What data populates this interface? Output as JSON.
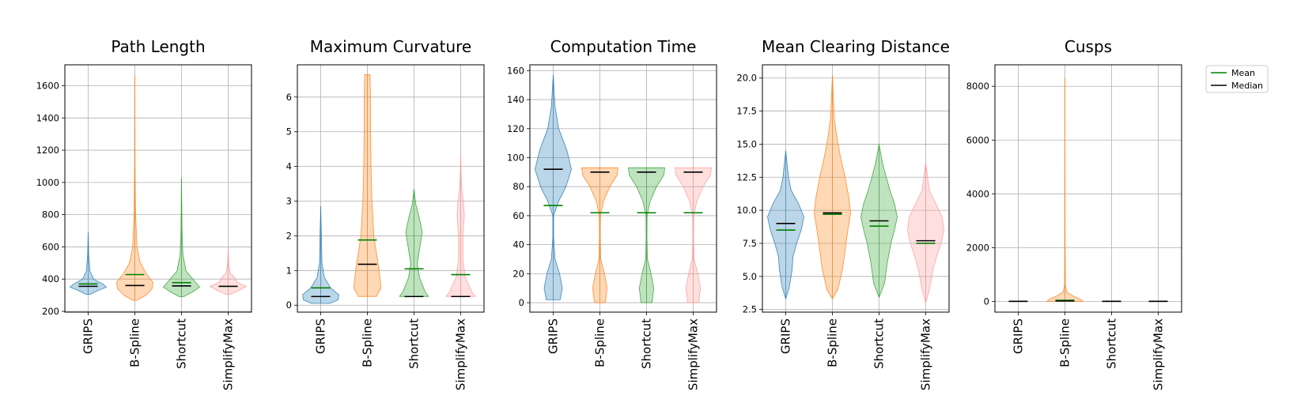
{
  "colors": {
    "series": [
      "#1f77b4",
      "#ff7f0e",
      "#2ca02c",
      "#ff9896"
    ],
    "mean": "#008000",
    "median": "#000000",
    "grid": "#b0b0b0",
    "frame": "#000000"
  },
  "legend": {
    "placement": "right of last panel, top",
    "entries": [
      {
        "label": "Mean",
        "color": "#008000"
      },
      {
        "label": "Median",
        "color": "#000000"
      }
    ]
  },
  "chart_data": [
    {
      "type": "violin",
      "title": "Path Length",
      "categories": [
        "GRIPS",
        "B-Spline",
        "Shortcut",
        "SimplifyMax"
      ],
      "ylim": [
        195,
        1730
      ],
      "yticks": [
        200,
        400,
        600,
        800,
        1000,
        1200,
        1400,
        1600
      ],
      "grid": true,
      "series": [
        {
          "name": "GRIPS",
          "min": 305,
          "max": 690,
          "mean": 370,
          "median": 355,
          "profile": [
            [
              305,
              0.1
            ],
            [
              330,
              0.55
            ],
            [
              350,
              1.0
            ],
            [
              370,
              0.8
            ],
            [
              400,
              0.3
            ],
            [
              450,
              0.1
            ],
            [
              550,
              0.03
            ],
            [
              690,
              0.0
            ]
          ]
        },
        {
          "name": "B-Spline",
          "min": 268,
          "max": 1665,
          "mean": 428,
          "median": 360,
          "profile": [
            [
              268,
              0.1
            ],
            [
              300,
              0.6
            ],
            [
              340,
              0.95
            ],
            [
              380,
              1.0
            ],
            [
              430,
              0.65
            ],
            [
              500,
              0.3
            ],
            [
              600,
              0.12
            ],
            [
              800,
              0.04
            ],
            [
              1100,
              0.015
            ],
            [
              1665,
              0.0
            ]
          ]
        },
        {
          "name": "Shortcut",
          "min": 290,
          "max": 1025,
          "mean": 378,
          "median": 358,
          "profile": [
            [
              290,
              0.1
            ],
            [
              320,
              0.6
            ],
            [
              350,
              1.0
            ],
            [
              390,
              0.7
            ],
            [
              450,
              0.25
            ],
            [
              550,
              0.08
            ],
            [
              700,
              0.03
            ],
            [
              1025,
              0.0
            ]
          ]
        },
        {
          "name": "SimplifyMax",
          "min": 305,
          "max": 600,
          "mean": 355,
          "median": 355,
          "profile": [
            [
              305,
              0.1
            ],
            [
              330,
              0.6
            ],
            [
              355,
              1.0
            ],
            [
              380,
              0.5
            ],
            [
              410,
              0.35
            ],
            [
              440,
              0.1
            ],
            [
              500,
              0.03
            ],
            [
              600,
              0.0
            ]
          ]
        }
      ]
    },
    {
      "type": "violin",
      "title": "Maximum Curvature",
      "categories": [
        "GRIPS",
        "B-Spline",
        "Shortcut",
        "SimplifyMax"
      ],
      "ylim": [
        -0.2,
        6.93
      ],
      "yticks": [
        0,
        1,
        2,
        3,
        4,
        5,
        6
      ],
      "grid": true,
      "series": [
        {
          "name": "GRIPS",
          "min": 0.05,
          "max": 2.85,
          "mean": 0.5,
          "median": 0.25,
          "profile": [
            [
              0.05,
              0.5
            ],
            [
              0.15,
              0.95
            ],
            [
              0.3,
              1.0
            ],
            [
              0.5,
              0.55
            ],
            [
              0.8,
              0.2
            ],
            [
              1.2,
              0.07
            ],
            [
              2.0,
              0.04
            ],
            [
              2.85,
              0.0
            ]
          ]
        },
        {
          "name": "B-Spline",
          "min": 0.25,
          "max": 6.65,
          "mean": 1.88,
          "median": 1.18,
          "profile": [
            [
              0.25,
              0.5
            ],
            [
              0.5,
              0.75
            ],
            [
              1.0,
              0.65
            ],
            [
              1.5,
              0.5
            ],
            [
              2.0,
              0.35
            ],
            [
              3.0,
              0.25
            ],
            [
              4.0,
              0.2
            ],
            [
              5.0,
              0.18
            ],
            [
              6.0,
              0.17
            ],
            [
              6.65,
              0.15
            ]
          ]
        },
        {
          "name": "Shortcut",
          "min": 0.25,
          "max": 3.35,
          "mean": 1.05,
          "median": 0.25,
          "profile": [
            [
              0.25,
              0.8
            ],
            [
              0.4,
              0.6
            ],
            [
              0.8,
              0.3
            ],
            [
              1.2,
              0.18
            ],
            [
              1.6,
              0.3
            ],
            [
              2.1,
              0.45
            ],
            [
              2.5,
              0.3
            ],
            [
              2.9,
              0.1
            ],
            [
              3.35,
              0.0
            ]
          ]
        },
        {
          "name": "SimplifyMax",
          "min": 0.25,
          "max": 4.3,
          "mean": 0.88,
          "median": 0.25,
          "profile": [
            [
              0.25,
              0.8
            ],
            [
              0.4,
              0.6
            ],
            [
              0.8,
              0.25
            ],
            [
              1.3,
              0.12
            ],
            [
              2.0,
              0.12
            ],
            [
              2.6,
              0.2
            ],
            [
              3.0,
              0.15
            ],
            [
              3.4,
              0.05
            ],
            [
              4.3,
              0.0
            ]
          ]
        }
      ]
    },
    {
      "type": "violin",
      "title": "Computation Time",
      "categories": [
        "GRIPS",
        "B-Spline",
        "Shortcut",
        "SimplifyMax"
      ],
      "ylim": [
        -6.5,
        164
      ],
      "yticks": [
        0,
        20,
        40,
        60,
        80,
        100,
        120,
        140,
        160
      ],
      "grid": true,
      "series": [
        {
          "name": "GRIPS",
          "min": 2,
          "max": 157,
          "mean": 67,
          "median": 92,
          "profile": [
            [
              2,
              0.38
            ],
            [
              10,
              0.5
            ],
            [
              20,
              0.35
            ],
            [
              30,
              0.1
            ],
            [
              45,
              0.02
            ],
            [
              60,
              0.02
            ],
            [
              70,
              0.3
            ],
            [
              80,
              0.7
            ],
            [
              92,
              1.0
            ],
            [
              105,
              0.75
            ],
            [
              120,
              0.3
            ],
            [
              135,
              0.1
            ],
            [
              157,
              0.0
            ]
          ]
        },
        {
          "name": "B-Spline",
          "min": 0,
          "max": 93,
          "mean": 62,
          "median": 90,
          "profile": [
            [
              0,
              0.3
            ],
            [
              10,
              0.4
            ],
            [
              20,
              0.25
            ],
            [
              30,
              0.05
            ],
            [
              45,
              0.02
            ],
            [
              60,
              0.03
            ],
            [
              70,
              0.2
            ],
            [
              80,
              0.55
            ],
            [
              88,
              0.95
            ],
            [
              93,
              1.0
            ]
          ]
        },
        {
          "name": "Shortcut",
          "min": 0,
          "max": 93,
          "mean": 62,
          "median": 90,
          "profile": [
            [
              0,
              0.3
            ],
            [
              10,
              0.4
            ],
            [
              20,
              0.25
            ],
            [
              30,
              0.05
            ],
            [
              45,
              0.02
            ],
            [
              60,
              0.03
            ],
            [
              70,
              0.2
            ],
            [
              80,
              0.55
            ],
            [
              88,
              0.95
            ],
            [
              93,
              1.0
            ]
          ]
        },
        {
          "name": "SimplifyMax",
          "min": 0,
          "max": 93,
          "mean": 62,
          "median": 90,
          "profile": [
            [
              0,
              0.3
            ],
            [
              10,
              0.4
            ],
            [
              20,
              0.25
            ],
            [
              30,
              0.05
            ],
            [
              45,
              0.02
            ],
            [
              60,
              0.03
            ],
            [
              70,
              0.2
            ],
            [
              80,
              0.55
            ],
            [
              88,
              0.95
            ],
            [
              93,
              1.0
            ]
          ]
        }
      ]
    },
    {
      "type": "violin",
      "title": "Mean Clearing Distance",
      "categories": [
        "GRIPS",
        "B-Spline",
        "Shortcut",
        "SimplifyMax"
      ],
      "ylim": [
        2.3,
        21.0
      ],
      "yticks": [
        2.5,
        5.0,
        7.5,
        10.0,
        12.5,
        15.0,
        17.5,
        20.0
      ],
      "yticklabels": [
        "2.5",
        "5.0",
        "7.5",
        "10.0",
        "12.5",
        "15.0",
        "17.5",
        "20.0"
      ],
      "grid": true,
      "series": [
        {
          "name": "GRIPS",
          "min": 3.3,
          "max": 14.5,
          "mean": 8.5,
          "median": 9.0,
          "profile": [
            [
              3.3,
              0.0
            ],
            [
              4.2,
              0.2
            ],
            [
              5.5,
              0.35
            ],
            [
              6.5,
              0.4
            ],
            [
              7.5,
              0.6
            ],
            [
              8.5,
              0.85
            ],
            [
              9.5,
              1.0
            ],
            [
              10.5,
              0.7
            ],
            [
              11.5,
              0.3
            ],
            [
              12.5,
              0.15
            ],
            [
              14.5,
              0.0
            ]
          ]
        },
        {
          "name": "B-Spline",
          "min": 3.3,
          "max": 20.2,
          "mean": 9.7,
          "median": 9.8,
          "profile": [
            [
              3.3,
              0.0
            ],
            [
              4.0,
              0.3
            ],
            [
              5.5,
              0.55
            ],
            [
              7.0,
              0.7
            ],
            [
              8.5,
              0.85
            ],
            [
              9.8,
              1.0
            ],
            [
              11.0,
              0.9
            ],
            [
              12.5,
              0.7
            ],
            [
              14.0,
              0.45
            ],
            [
              15.5,
              0.25
            ],
            [
              17.0,
              0.1
            ],
            [
              20.2,
              0.0
            ]
          ]
        },
        {
          "name": "Shortcut",
          "min": 3.4,
          "max": 15.0,
          "mean": 8.8,
          "median": 9.2,
          "profile": [
            [
              3.4,
              0.0
            ],
            [
              4.5,
              0.3
            ],
            [
              6.0,
              0.45
            ],
            [
              7.5,
              0.65
            ],
            [
              8.5,
              0.85
            ],
            [
              9.5,
              1.0
            ],
            [
              10.5,
              0.85
            ],
            [
              11.5,
              0.6
            ],
            [
              12.5,
              0.4
            ],
            [
              13.5,
              0.2
            ],
            [
              15.0,
              0.0
            ]
          ]
        },
        {
          "name": "SimplifyMax",
          "min": 3.0,
          "max": 13.6,
          "mean": 7.5,
          "median": 7.7,
          "profile": [
            [
              3.0,
              0.0
            ],
            [
              4.0,
              0.2
            ],
            [
              5.5,
              0.4
            ],
            [
              6.5,
              0.6
            ],
            [
              7.5,
              0.85
            ],
            [
              8.5,
              1.0
            ],
            [
              9.5,
              0.9
            ],
            [
              10.5,
              0.55
            ],
            [
              11.5,
              0.2
            ],
            [
              13.6,
              0.0
            ]
          ]
        }
      ]
    },
    {
      "type": "violin",
      "title": "Cusps",
      "categories": [
        "GRIPS",
        "B-Spline",
        "Shortcut",
        "SimplifyMax"
      ],
      "ylim": [
        -400,
        8800
      ],
      "yticks": [
        0,
        2000,
        4000,
        6000,
        8000
      ],
      "grid": true,
      "series": [
        {
          "name": "GRIPS",
          "min": 0,
          "max": 10,
          "mean": 2,
          "median": 1,
          "profile": [
            [
              0,
              0.35
            ],
            [
              10,
              0.0
            ]
          ]
        },
        {
          "name": "B-Spline",
          "min": 0,
          "max": 8300,
          "mean": 40,
          "median": 15,
          "profile": [
            [
              0,
              1.0
            ],
            [
              100,
              0.8
            ],
            [
              200,
              0.45
            ],
            [
              350,
              0.1
            ],
            [
              600,
              0.02
            ],
            [
              2000,
              0.015
            ],
            [
              8300,
              0.0
            ]
          ]
        },
        {
          "name": "Shortcut",
          "min": 0,
          "max": 10,
          "mean": 2,
          "median": 1,
          "profile": [
            [
              0,
              0.35
            ],
            [
              10,
              0.0
            ]
          ]
        },
        {
          "name": "SimplifyMax",
          "min": 0,
          "max": 10,
          "mean": 2,
          "median": 1,
          "profile": [
            [
              0,
              0.35
            ],
            [
              10,
              0.0
            ]
          ]
        }
      ]
    }
  ]
}
